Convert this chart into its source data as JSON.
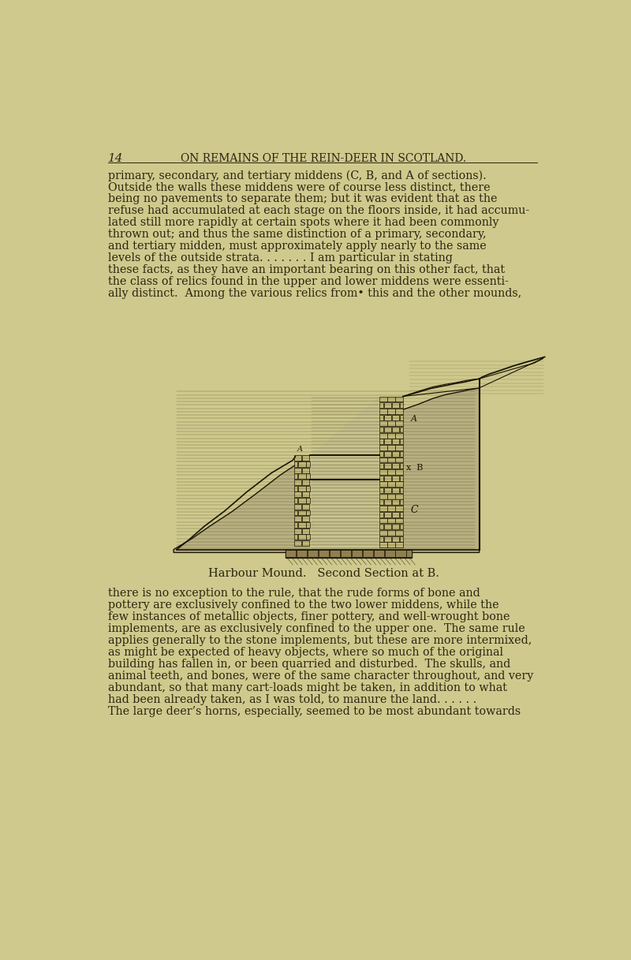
{
  "bg_color": "#cfc98d",
  "text_color": "#2a2510",
  "page_number": "14",
  "header": "ON REMAINS OF THE REIN-DEER IN SCOTLAND.",
  "figsize": [
    8.0,
    12.17
  ],
  "dpi": 100,
  "caption": "Harbour Mound.   Second Section at B.",
  "para1_lines": [
    "primary, secondary, and tertiary middens (C, B, and A of sections).",
    "Outside the walls these middens were of course less distinct, there",
    "being no pavements to separate them; but it was evident that as the",
    "refuse had accumulated at each stage on the floors inside, it had accumu-",
    "lated still more rapidly at certain spots where it had been commonly",
    "thrown out; and thus the same distinction of a primary, secondary,",
    "and tertiary midden, must approximately apply nearly to the same",
    "levels of the outside strata. . . . . . . I am particular in stating",
    "these facts, as they have an important bearing on this other fact, that",
    "the class of relics found in the upper and lower middens were essenti-",
    "ally distinct.  Among the various relics from• this and the other mounds,"
  ],
  "para2_lines": [
    "there is no exception to the rule, that the rude forms of bone and",
    "pottery are exclusively confined to the two lower middens, while the",
    "few instances of metallic objects, finer pottery, and well-wrought bone",
    "implements, are as exclusively confined to the upper one.  The same rule",
    "applies generally to the stone implements, but these are more intermixed,",
    "as might be expected of heavy objects, where so much of the original",
    "building has fallen in, or been quarried and disturbed.  The skulls, and",
    "animal teeth, and bones, were of the same character throughout, and very",
    "abundant, so that many cart-loads might be taken, in addition to what",
    "had been already taken, as I was told, to manure the land. . . . . .",
    "The large deer’s horns, especially, seemed to be most abundant towards"
  ],
  "line_color": "#1a1505",
  "mound_fill": "#b8b080",
  "stone_fill": "#c0b878",
  "base_fill": "#908050"
}
